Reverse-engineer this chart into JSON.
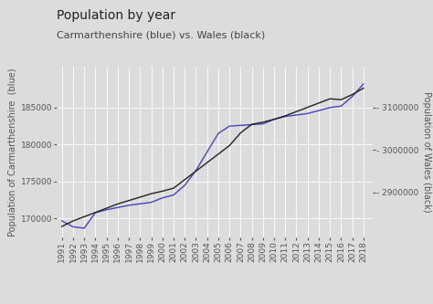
{
  "title": "Population by year",
  "subtitle": "Carmarthenshire (blue) vs. Wales (black)",
  "ylabel_left": "Population of Carmarthenshire  (blue)",
  "ylabel_right": "Population of Wales (black)",
  "background_color": "#dcdcdc",
  "grid_color": "#ffffff",
  "years": [
    1991,
    1992,
    1993,
    1994,
    1995,
    1996,
    1997,
    1998,
    1999,
    2000,
    2001,
    2002,
    2003,
    2004,
    2005,
    2006,
    2007,
    2008,
    2009,
    2010,
    2011,
    2012,
    2013,
    2014,
    2015,
    2016,
    2017,
    2018
  ],
  "carmarthenshire": [
    169700,
    168900,
    168700,
    170800,
    171200,
    171500,
    171800,
    172000,
    172200,
    172800,
    173200,
    174500,
    176500,
    179000,
    181500,
    182500,
    182600,
    182700,
    182800,
    183400,
    183800,
    184000,
    184200,
    184600,
    185000,
    185200,
    186500,
    188200
  ],
  "wales": [
    2820000,
    2833000,
    2843000,
    2853000,
    2863000,
    2873000,
    2881000,
    2889000,
    2897000,
    2903000,
    2910000,
    2930000,
    2950000,
    2970000,
    2990000,
    3010000,
    3040000,
    3060000,
    3065000,
    3072000,
    3080000,
    3090000,
    3100000,
    3110000,
    3120000,
    3118000,
    3130000,
    3145000
  ],
  "blue_color": "#4444bb",
  "black_color": "#222222",
  "ylim_left": [
    167500,
    190500
  ],
  "ylim_right": [
    2795000,
    3195000
  ],
  "yticks_left": [
    170000,
    175000,
    180000,
    185000
  ],
  "yticks_right": [
    2900000,
    3000000,
    3100000
  ],
  "title_fontsize": 10,
  "subtitle_fontsize": 8,
  "axis_label_fontsize": 7,
  "tick_fontsize": 6.5
}
